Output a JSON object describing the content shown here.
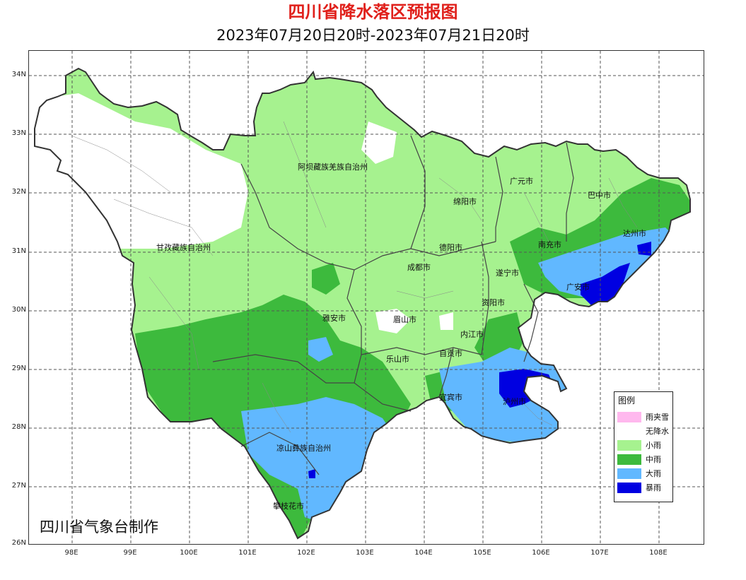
{
  "title": "四川省降水落区预报图",
  "subtitle": "2023年07月20日20时-2023年07月21日20时",
  "credit": "四川省气象台制作",
  "axes": {
    "latitudes": [
      "34N",
      "33N",
      "32N",
      "31N",
      "30N",
      "29N",
      "28N",
      "27N",
      "26N"
    ],
    "longitudes": [
      "98E",
      "99E",
      "100E",
      "101E",
      "102E",
      "103E",
      "104E",
      "105E",
      "106E",
      "107E",
      "108E"
    ]
  },
  "legend": {
    "title": "图例",
    "items": [
      {
        "label": "雨夹雪",
        "color": "#ffb8ee"
      },
      {
        "label": "无降水",
        "color": "#ffffff"
      },
      {
        "label": "小雨",
        "color": "#a6f28f"
      },
      {
        "label": "中雨",
        "color": "#3dba3d"
      },
      {
        "label": "大雨",
        "color": "#61b8ff"
      },
      {
        "label": "暴雨",
        "color": "#0000e1"
      }
    ]
  },
  "regions": [
    {
      "label": "阿坝藏族羌族自治州"
    },
    {
      "label": "甘孜藏族自治州"
    },
    {
      "label": "广元市"
    },
    {
      "label": "巴中市"
    },
    {
      "label": "绵阳市"
    },
    {
      "label": "达州市"
    },
    {
      "label": "德阳市"
    },
    {
      "label": "南充市"
    },
    {
      "label": "成都市"
    },
    {
      "label": "遂宁市"
    },
    {
      "label": "广安市"
    },
    {
      "label": "资阳市"
    },
    {
      "label": "雅安市"
    },
    {
      "label": "眉山市"
    },
    {
      "label": "内江市"
    },
    {
      "label": "自贡市"
    },
    {
      "label": "乐山市"
    },
    {
      "label": "宜宾市"
    },
    {
      "label": "泸州市"
    },
    {
      "label": "凉山彝族自治州"
    },
    {
      "label": "攀枝花市"
    }
  ]
}
